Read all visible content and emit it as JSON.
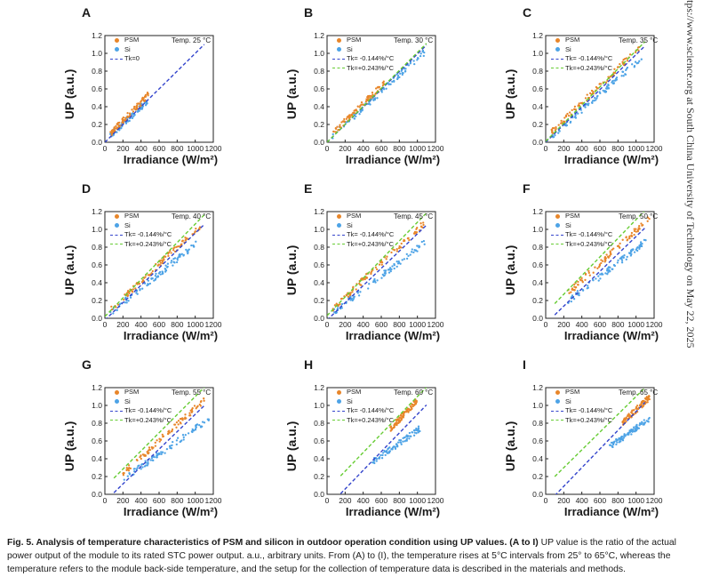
{
  "figure": {
    "caption_title": "Fig. 5. Analysis of temperature characteristics of PSM and silicon in outdoor operation condition using UP values.",
    "caption_ref": "(A to I)",
    "caption_body": "UP value is the ratio of the actual power output of the module to its rated STC power output. a.u., arbitrary units. From (A) to (I), the temperature rises at 5°C intervals from 25° to 65°C, whereas the temperature refers to the module back-side temperature, and the setup for the collection of temperature data is described in the materials and methods.",
    "watermark": "tps://www.science.org at South China University of Technology on May 22, 2025"
  },
  "colors": {
    "psm": "#e8862a",
    "si": "#4da3e6",
    "tk_neg": "#3344cc",
    "tk_pos": "#66cc33"
  },
  "chart_data": [
    {
      "type": "scatter",
      "panel": "A",
      "temp_label": "Temp. 25 °C",
      "xlabel": "Irradiance (W/m²)",
      "ylabel": "UP (a.u.)",
      "xlim": [
        0,
        1200
      ],
      "ylim": [
        0,
        1.2
      ],
      "xticks": [
        0,
        200,
        400,
        600,
        800,
        1000,
        1200
      ],
      "yticks": [
        0.0,
        0.2,
        0.4,
        0.6,
        0.8,
        1.0,
        1.2
      ],
      "series": [
        {
          "name": "PSM",
          "kind": "points",
          "x_range": [
            60,
            480
          ],
          "slope": 0.00105,
          "intercept": 0.03
        },
        {
          "name": "Si",
          "kind": "points",
          "x_range": [
            60,
            470
          ],
          "slope": 0.00093,
          "intercept": 0.02
        },
        {
          "name": "Tk=0",
          "kind": "line",
          "x_range": [
            0,
            1100
          ],
          "slope": 0.001,
          "intercept": 0.0
        }
      ]
    },
    {
      "type": "scatter",
      "panel": "B",
      "temp_label": "Temp. 30 °C",
      "xlabel": "Irradiance (W/m²)",
      "ylabel": "UP (a.u.)",
      "xlim": [
        0,
        1200
      ],
      "ylim": [
        0,
        1.2
      ],
      "xticks": [
        0,
        200,
        400,
        600,
        800,
        1000,
        1200
      ],
      "yticks": [
        0.0,
        0.2,
        0.4,
        0.6,
        0.8,
        1.0,
        1.2
      ],
      "series": [
        {
          "name": "PSM",
          "kind": "points",
          "x_range": [
            60,
            640
          ],
          "slope": 0.00098,
          "intercept": 0.04
        },
        {
          "name": "Si",
          "kind": "points",
          "x_range": [
            60,
            1080
          ],
          "slope": 0.00092,
          "intercept": 0.02
        },
        {
          "name": "Tk= -0.144%/°C",
          "kind": "line",
          "x_range": [
            0,
            1100
          ],
          "slope": 0.000993,
          "intercept": 0.0
        },
        {
          "name": "Tk=+0.243%/°C",
          "kind": "line",
          "x_range": [
            0,
            1100
          ],
          "slope": 0.00101,
          "intercept": 0.0
        }
      ]
    },
    {
      "type": "scatter",
      "panel": "C",
      "temp_label": "Temp. 35 °C",
      "xlabel": "Irradiance (W/m²)",
      "ylabel": "UP (a.u.)",
      "xlim": [
        0,
        1200
      ],
      "ylim": [
        0,
        1.2
      ],
      "xticks": [
        0,
        200,
        400,
        600,
        800,
        1000,
        1200
      ],
      "yticks": [
        0.0,
        0.2,
        0.4,
        0.6,
        0.8,
        1.0,
        1.2
      ],
      "series": [
        {
          "name": "PSM",
          "kind": "points",
          "x_range": [
            60,
            1040
          ],
          "slope": 0.00098,
          "intercept": 0.05
        },
        {
          "name": "Si",
          "kind": "points",
          "x_range": [
            60,
            1080
          ],
          "slope": 0.00088,
          "intercept": 0.01
        },
        {
          "name": "Tk= -0.144%/°C",
          "kind": "line",
          "x_range": [
            0,
            1100
          ],
          "slope": 0.000986,
          "intercept": 0.0
        },
        {
          "name": "Tk=+0.243%/°C",
          "kind": "line",
          "x_range": [
            0,
            1100
          ],
          "slope": 0.00102,
          "intercept": 0.01
        }
      ]
    },
    {
      "type": "scatter",
      "panel": "D",
      "temp_label": "Temp. 40 °C",
      "xlabel": "Irradiance (W/m²)",
      "ylabel": "UP (a.u.)",
      "xlim": [
        0,
        1200
      ],
      "ylim": [
        0,
        1.2
      ],
      "xticks": [
        0,
        200,
        400,
        600,
        800,
        1000,
        1200
      ],
      "yticks": [
        0.0,
        0.2,
        0.4,
        0.6,
        0.8,
        1.0,
        1.2
      ],
      "series": [
        {
          "name": "PSM",
          "kind": "points",
          "x_range": [
            60,
            1060
          ],
          "slope": 0.00095,
          "intercept": 0.04
        },
        {
          "name": "Si",
          "kind": "points",
          "x_range": [
            60,
            1060
          ],
          "slope": 0.00082,
          "intercept": 0.01
        },
        {
          "name": "Tk= -0.144%/°C",
          "kind": "line",
          "x_range": [
            0,
            1100
          ],
          "slope": 0.000978,
          "intercept": -0.02
        },
        {
          "name": "Tk=+0.243%/°C",
          "kind": "line",
          "x_range": [
            0,
            1100
          ],
          "slope": 0.00104,
          "intercept": 0.02
        }
      ]
    },
    {
      "type": "scatter",
      "panel": "E",
      "temp_label": "Temp. 45 °C",
      "xlabel": "Irradiance (W/m²)",
      "ylabel": "UP (a.u.)",
      "xlim": [
        0,
        1200
      ],
      "ylim": [
        0,
        1.2
      ],
      "xticks": [
        0,
        200,
        400,
        600,
        800,
        1000,
        1200
      ],
      "yticks": [
        0.0,
        0.2,
        0.4,
        0.6,
        0.8,
        1.0,
        1.2
      ],
      "series": [
        {
          "name": "PSM",
          "kind": "points",
          "x_range": [
            60,
            1080
          ],
          "slope": 0.00095,
          "intercept": 0.05
        },
        {
          "name": "Si",
          "kind": "points",
          "x_range": [
            60,
            1080
          ],
          "slope": 0.00078,
          "intercept": 0.01
        },
        {
          "name": "Tk= -0.144%/°C",
          "kind": "line",
          "x_range": [
            0,
            1100
          ],
          "slope": 0.00097,
          "intercept": -0.02
        },
        {
          "name": "Tk=+0.243%/°C",
          "kind": "line",
          "x_range": [
            0,
            1100
          ],
          "slope": 0.00105,
          "intercept": 0.03
        }
      ]
    },
    {
      "type": "scatter",
      "panel": "F",
      "temp_label": "Temp. 50 °C",
      "xlabel": "Irradiance (W/m²)",
      "ylabel": "UP (a.u.)",
      "xlim": [
        0,
        1200
      ],
      "ylim": [
        0,
        1.2
      ],
      "xticks": [
        0,
        200,
        400,
        600,
        800,
        1000,
        1200
      ],
      "yticks": [
        0.0,
        0.2,
        0.4,
        0.6,
        0.8,
        1.0,
        1.2
      ],
      "series": [
        {
          "name": "PSM",
          "kind": "points",
          "x_range": [
            250,
            1150
          ],
          "slope": 0.00094,
          "intercept": 0.05
        },
        {
          "name": "Si",
          "kind": "points",
          "x_range": [
            250,
            1150
          ],
          "slope": 0.00078,
          "intercept": 0.0
        },
        {
          "name": "Tk= -0.144%/°C",
          "kind": "line",
          "x_range": [
            100,
            1100
          ],
          "slope": 0.00098,
          "intercept": -0.06
        },
        {
          "name": "Tk=+0.243%/°C",
          "kind": "line",
          "x_range": [
            100,
            1100
          ],
          "slope": 0.00105,
          "intercept": 0.06
        }
      ]
    },
    {
      "type": "scatter",
      "panel": "G",
      "temp_label": "Temp. 55 °C",
      "xlabel": "Irradiance (W/m²)",
      "ylabel": "UP (a.u.)",
      "xlim": [
        0,
        1200
      ],
      "ylim": [
        0,
        1.2
      ],
      "xticks": [
        0,
        200,
        400,
        600,
        800,
        1000,
        1200
      ],
      "yticks": [
        0.0,
        0.2,
        0.4,
        0.6,
        0.8,
        1.0,
        1.2
      ],
      "series": [
        {
          "name": "PSM",
          "kind": "points",
          "x_range": [
            200,
            1100
          ],
          "slope": 0.00092,
          "intercept": 0.05
        },
        {
          "name": "Si",
          "kind": "points",
          "x_range": [
            200,
            1150
          ],
          "slope": 0.00072,
          "intercept": 0.02
        },
        {
          "name": "Tk= -0.144%/°C",
          "kind": "line",
          "x_range": [
            100,
            1100
          ],
          "slope": 0.00098,
          "intercept": -0.08
        },
        {
          "name": "Tk=+0.243%/°C",
          "kind": "line",
          "x_range": [
            100,
            1100
          ],
          "slope": 0.00102,
          "intercept": 0.08
        }
      ]
    },
    {
      "type": "scatter",
      "panel": "H",
      "temp_label": "Temp. 60 °C",
      "xlabel": "Irradiance (W/m²)",
      "ylabel": "UP (a.u.)",
      "xlim": [
        0,
        1200
      ],
      "ylim": [
        0,
        1.2
      ],
      "xticks": [
        0,
        200,
        400,
        600,
        800,
        1000,
        1200
      ],
      "yticks": [
        0.0,
        0.2,
        0.4,
        0.6,
        0.8,
        1.0,
        1.2
      ],
      "series": [
        {
          "name": "PSM",
          "kind": "points",
          "x_range": [
            700,
            1000
          ],
          "slope": 0.0011,
          "intercept": -0.04
        },
        {
          "name": "Si",
          "kind": "points",
          "x_range": [
            500,
            1050
          ],
          "slope": 0.00072,
          "intercept": 0.0
        },
        {
          "name": "Tk= -0.144%/°C",
          "kind": "line",
          "x_range": [
            150,
            1100
          ],
          "slope": 0.00105,
          "intercept": -0.15
        },
        {
          "name": "Tk=+0.243%/°C",
          "kind": "line",
          "x_range": [
            150,
            1100
          ],
          "slope": 0.00105,
          "intercept": 0.05
        }
      ]
    },
    {
      "type": "scatter",
      "panel": "I",
      "temp_label": "Temp. 65 °C",
      "xlabel": "Irradiance (W/m²)",
      "ylabel": "UP (a.u.)",
      "xlim": [
        0,
        1200
      ],
      "ylim": [
        0,
        1.2
      ],
      "xticks": [
        0,
        200,
        400,
        600,
        800,
        1000,
        1200
      ],
      "yticks": [
        0.0,
        0.2,
        0.4,
        0.6,
        0.8,
        1.0,
        1.2
      ],
      "series": [
        {
          "name": "PSM",
          "kind": "points",
          "x_range": [
            850,
            1150
          ],
          "slope": 0.00095,
          "intercept": 0.0
        },
        {
          "name": "Si",
          "kind": "points",
          "x_range": [
            700,
            1150
          ],
          "slope": 0.0007,
          "intercept": 0.04
        },
        {
          "name": "Tk= -0.144%/°C",
          "kind": "line",
          "x_range": [
            100,
            1100
          ],
          "slope": 0.00105,
          "intercept": -0.12
        },
        {
          "name": "Tk=+0.243%/°C",
          "kind": "line",
          "x_range": [
            100,
            1100
          ],
          "slope": 0.001,
          "intercept": 0.1
        }
      ]
    }
  ]
}
